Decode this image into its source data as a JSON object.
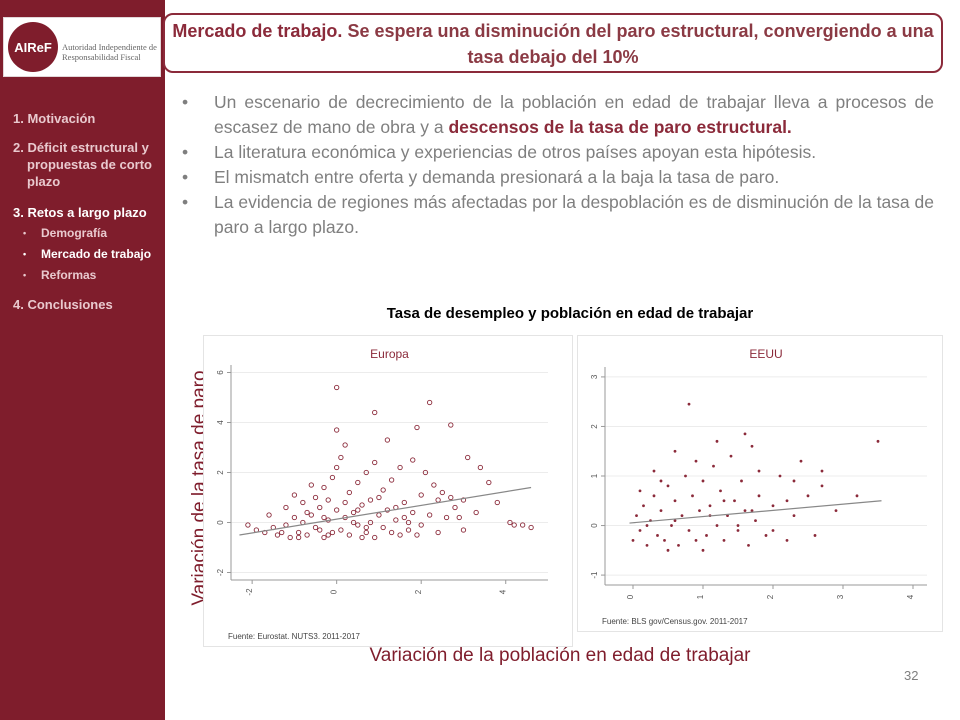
{
  "logo": {
    "mark": "AIReF",
    "text": "Autoridad Independiente de Responsabilidad Fiscal"
  },
  "sidebar": {
    "items": [
      {
        "label": "1.  Motivación",
        "active": false
      },
      {
        "label": "2. Déficit estructural y propuestas de corto plazo",
        "active": false
      },
      {
        "label": "3. Retos a largo plazo",
        "active": true
      },
      {
        "label": "4. Conclusiones",
        "active": false
      }
    ],
    "subitems": [
      {
        "label": "Demografía",
        "active": false
      },
      {
        "label": "Mercado de trabajo",
        "active": true
      },
      {
        "label": "Reformas",
        "active": false
      }
    ]
  },
  "title": {
    "lead": "Mercado de trabajo.",
    "rest": " Se espera una disminución del paro estructural, convergiendo a una tasa debajo del 10%"
  },
  "bullets": [
    {
      "text": "Un escenario de decrecimiento de la población en edad de trabajar lleva a procesos de escasez de mano de obra y a ",
      "highlight": "descensos de la tasa de paro estructural."
    },
    {
      "text": "La literatura económica y experiencias de otros países apoyan esta hipótesis.",
      "highlight": ""
    },
    {
      "text": "El mismatch entre oferta y demanda presionará a la baja la tasa de paro.",
      "highlight": ""
    },
    {
      "text": "La evidencia de regiones más afectadas por la despoblación es de disminución de la tasa de paro a largo plazo.",
      "highlight": ""
    }
  ],
  "figure": {
    "title": "Tasa de desempleo y población en edad de trabajar",
    "ylabel": "Variación de la tasa de paro",
    "xlabel": "Variación de la población en edad de trabajar"
  },
  "chart_data": [
    {
      "type": "scatter",
      "title": "Europa",
      "source": "Fuente: Eurostat. NUTS3. 2011-2017",
      "xticks": [
        -2,
        0,
        2,
        4
      ],
      "yticks": [
        -2,
        0,
        2,
        4,
        6
      ],
      "xlim": [
        -2.5,
        5
      ],
      "ylim": [
        -2.3,
        6.3
      ],
      "fit_line": [
        [
          -2.3,
          -0.5
        ],
        [
          4.6,
          1.4
        ]
      ],
      "marker": "hollow-circle",
      "color": "#8b2a3a",
      "points": [
        [
          -1.9,
          -0.3
        ],
        [
          -1.7,
          -0.4
        ],
        [
          -1.5,
          -0.2
        ],
        [
          -1.4,
          -0.5
        ],
        [
          -1.2,
          -0.1
        ],
        [
          -1.1,
          -0.6
        ],
        [
          -1.0,
          0.2
        ],
        [
          -0.9,
          -0.4
        ],
        [
          -0.8,
          0.0
        ],
        [
          -0.7,
          -0.5
        ],
        [
          -0.6,
          0.3
        ],
        [
          -0.5,
          -0.2
        ],
        [
          -0.4,
          0.6
        ],
        [
          -0.3,
          -0.6
        ],
        [
          -0.2,
          0.1
        ],
        [
          -0.1,
          -0.4
        ],
        [
          0.0,
          0.5
        ],
        [
          0.1,
          -0.3
        ],
        [
          0.2,
          0.2
        ],
        [
          0.3,
          -0.5
        ],
        [
          0.4,
          0.4
        ],
        [
          0.5,
          -0.1
        ],
        [
          0.6,
          0.7
        ],
        [
          0.7,
          -0.4
        ],
        [
          0.8,
          0.0
        ],
        [
          0.9,
          -0.6
        ],
        [
          1.0,
          0.3
        ],
        [
          1.1,
          -0.2
        ],
        [
          1.2,
          0.5
        ],
        [
          1.3,
          -0.4
        ],
        [
          1.4,
          0.1
        ],
        [
          1.5,
          -0.5
        ],
        [
          1.6,
          0.2
        ],
        [
          1.7,
          -0.3
        ],
        [
          1.8,
          0.4
        ],
        [
          2.0,
          -0.1
        ],
        [
          2.2,
          0.3
        ],
        [
          2.4,
          -0.4
        ],
        [
          2.6,
          0.2
        ],
        [
          2.8,
          0.6
        ],
        [
          3.0,
          -0.3
        ],
        [
          3.3,
          0.4
        ],
        [
          -0.5,
          1.0
        ],
        [
          -0.3,
          1.4
        ],
        [
          -0.1,
          1.8
        ],
        [
          0.0,
          2.2
        ],
        [
          0.1,
          2.6
        ],
        [
          0.2,
          3.1
        ],
        [
          -0.2,
          0.9
        ],
        [
          0.3,
          1.2
        ],
        [
          0.5,
          1.6
        ],
        [
          0.7,
          2.0
        ],
        [
          0.9,
          2.4
        ],
        [
          1.1,
          1.3
        ],
        [
          1.3,
          1.7
        ],
        [
          1.5,
          2.2
        ],
        [
          1.8,
          2.5
        ],
        [
          2.1,
          2.0
        ],
        [
          2.3,
          1.5
        ],
        [
          2.5,
          1.2
        ],
        [
          2.7,
          1.0
        ],
        [
          3.0,
          0.9
        ],
        [
          -0.8,
          0.8
        ],
        [
          -1.0,
          1.1
        ],
        [
          -1.2,
          0.6
        ],
        [
          -0.6,
          1.5
        ],
        [
          0.0,
          5.4
        ],
        [
          0.9,
          4.4
        ],
        [
          2.2,
          4.8
        ],
        [
          1.9,
          3.8
        ],
        [
          2.7,
          3.9
        ],
        [
          1.2,
          3.3
        ],
        [
          0.0,
          3.7
        ],
        [
          3.1,
          2.6
        ],
        [
          3.4,
          2.2
        ],
        [
          3.6,
          1.6
        ],
        [
          4.2,
          -0.1
        ],
        [
          4.4,
          -0.1
        ],
        [
          4.6,
          -0.2
        ],
        [
          4.1,
          0.0
        ],
        [
          3.8,
          0.8
        ],
        [
          -2.1,
          -0.1
        ],
        [
          -1.6,
          0.3
        ],
        [
          -0.4,
          -0.3
        ],
        [
          0.6,
          -0.6
        ],
        [
          1.9,
          -0.5
        ],
        [
          -0.9,
          -0.6
        ],
        [
          0.4,
          0.0
        ],
        [
          0.8,
          0.9
        ],
        [
          1.6,
          0.8
        ],
        [
          2.4,
          0.9
        ],
        [
          -0.7,
          0.4
        ],
        [
          0.2,
          0.8
        ],
        [
          1.0,
          1.0
        ],
        [
          -0.3,
          0.2
        ],
        [
          0.5,
          0.5
        ],
        [
          1.4,
          0.6
        ],
        [
          2.0,
          1.1
        ],
        [
          -1.3,
          -0.4
        ],
        [
          -0.2,
          -0.5
        ],
        [
          0.7,
          -0.2
        ],
        [
          1.7,
          0.0
        ],
        [
          2.9,
          0.2
        ]
      ]
    },
    {
      "type": "scatter",
      "title": "EEUU",
      "source": "Fuente: BLS gov/Census.gov. 2011-2017",
      "xticks": [
        0,
        1,
        2,
        3,
        4
      ],
      "yticks": [
        -1,
        0,
        1,
        2,
        3
      ],
      "xlim": [
        -0.4,
        4.2
      ],
      "ylim": [
        -1.2,
        3.2
      ],
      "fit_line": [
        [
          -0.05,
          0.05
        ],
        [
          3.55,
          0.5
        ]
      ],
      "marker": "dot",
      "color": "#8b2a3a",
      "points": [
        [
          0.0,
          -0.3
        ],
        [
          0.05,
          0.2
        ],
        [
          0.1,
          -0.1
        ],
        [
          0.15,
          0.4
        ],
        [
          0.2,
          -0.4
        ],
        [
          0.25,
          0.1
        ],
        [
          0.3,
          0.6
        ],
        [
          0.35,
          -0.2
        ],
        [
          0.4,
          0.3
        ],
        [
          0.45,
          -0.3
        ],
        [
          0.5,
          0.8
        ],
        [
          0.55,
          0.0
        ],
        [
          0.6,
          0.5
        ],
        [
          0.65,
          -0.4
        ],
        [
          0.7,
          0.2
        ],
        [
          0.75,
          1.0
        ],
        [
          0.8,
          -0.1
        ],
        [
          0.85,
          0.6
        ],
        [
          0.9,
          -0.3
        ],
        [
          0.95,
          0.3
        ],
        [
          1.0,
          0.9
        ],
        [
          1.05,
          -0.2
        ],
        [
          1.1,
          0.4
        ],
        [
          1.15,
          1.2
        ],
        [
          1.2,
          0.0
        ],
        [
          1.25,
          0.7
        ],
        [
          1.3,
          -0.3
        ],
        [
          1.35,
          0.2
        ],
        [
          1.4,
          1.4
        ],
        [
          1.45,
          0.5
        ],
        [
          1.5,
          -0.1
        ],
        [
          1.55,
          0.9
        ],
        [
          1.6,
          0.3
        ],
        [
          1.65,
          -0.4
        ],
        [
          1.7,
          1.6
        ],
        [
          1.75,
          0.1
        ],
        [
          1.8,
          0.6
        ],
        [
          1.9,
          -0.2
        ],
        [
          2.0,
          0.4
        ],
        [
          2.1,
          1.0
        ],
        [
          2.2,
          -0.3
        ],
        [
          2.3,
          0.2
        ],
        [
          2.4,
          1.3
        ],
        [
          2.5,
          0.6
        ],
        [
          2.6,
          -0.2
        ],
        [
          2.7,
          0.8
        ],
        [
          2.9,
          0.3
        ],
        [
          3.2,
          0.6
        ],
        [
          3.5,
          1.7
        ],
        [
          0.8,
          2.45
        ],
        [
          0.6,
          1.5
        ],
        [
          1.2,
          1.7
        ],
        [
          1.6,
          1.85
        ],
        [
          0.3,
          1.1
        ],
        [
          0.5,
          -0.5
        ],
        [
          1.0,
          -0.5
        ],
        [
          1.5,
          0.0
        ],
        [
          2.0,
          -0.1
        ],
        [
          0.1,
          0.7
        ],
        [
          0.4,
          0.9
        ],
        [
          0.9,
          1.3
        ],
        [
          1.3,
          0.5
        ],
        [
          1.8,
          1.1
        ],
        [
          2.3,
          0.9
        ],
        [
          2.7,
          1.1
        ],
        [
          0.2,
          0.0
        ],
        [
          0.6,
          0.1
        ],
        [
          1.1,
          0.2
        ],
        [
          1.7,
          0.3
        ],
        [
          2.2,
          0.5
        ]
      ]
    }
  ],
  "page_number": "32"
}
